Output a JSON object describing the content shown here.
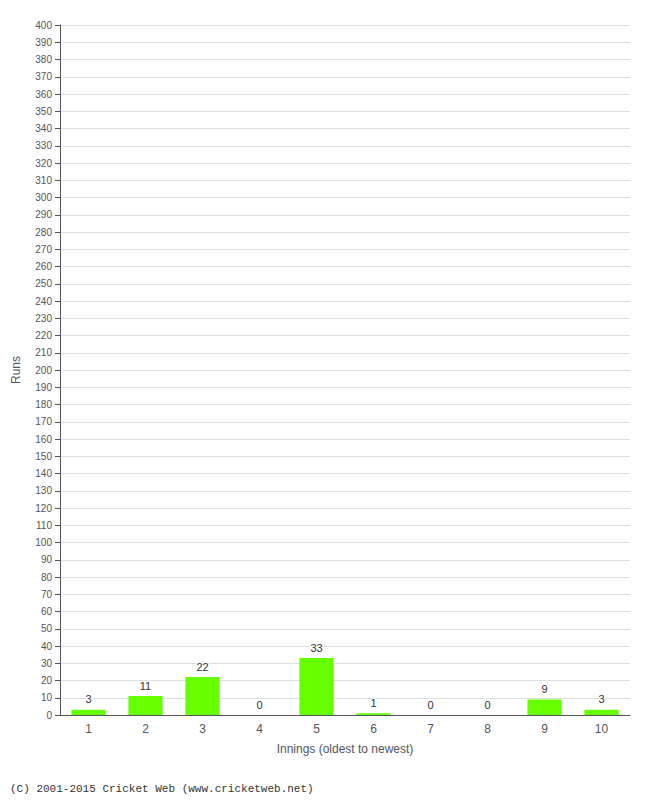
{
  "chart_data": {
    "type": "bar",
    "xlabel": "Innings (oldest to newest)",
    "ylabel": "Runs",
    "categories": [
      "1",
      "2",
      "3",
      "4",
      "5",
      "6",
      "7",
      "8",
      "9",
      "10"
    ],
    "values": [
      3,
      11,
      22,
      0,
      33,
      1,
      0,
      0,
      9,
      3
    ],
    "color": "#66ff00",
    "ylim": [
      0,
      400
    ],
    "yticks": [
      0,
      10,
      20,
      30,
      40,
      50,
      60,
      70,
      80,
      90,
      100,
      110,
      120,
      130,
      140,
      150,
      160,
      170,
      180,
      190,
      200,
      210,
      220,
      230,
      240,
      250,
      260,
      270,
      280,
      290,
      300,
      310,
      320,
      330,
      340,
      350,
      360,
      370,
      380,
      390,
      400
    ],
    "grid": true,
    "data_labels": true,
    "annotations": [
      "(C) 2001-2015 Cricket Web (www.cricketweb.net)"
    ]
  }
}
